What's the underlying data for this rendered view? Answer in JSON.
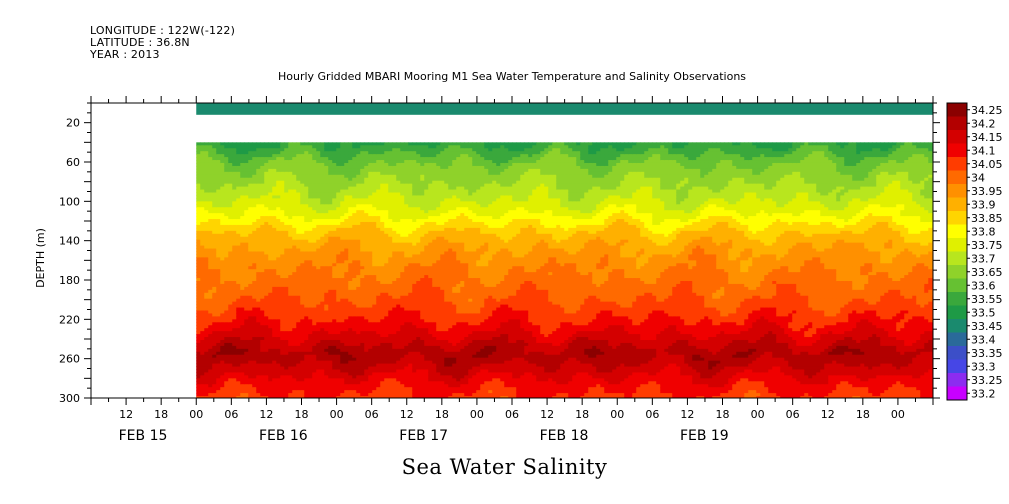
{
  "header": {
    "longitude": "LONGITUDE : 122W(-122)",
    "latitude": "LATITUDE : 36.8N",
    "year": "YEAR : 2013"
  },
  "footer_title": "Sea Water Salinity",
  "chart_data": {
    "type": "heatmap",
    "title": "Hourly Gridded MBARI Mooring M1 Sea Water Temperature and Salinity Observations",
    "ylabel": "DEPTH (m)",
    "xlabel": "",
    "ylim": [
      300,
      0
    ],
    "y_ticks": [
      "20",
      "60",
      "100",
      "140",
      "180",
      "220",
      "260",
      "300"
    ],
    "y_tick_values": [
      20,
      60,
      100,
      140,
      180,
      220,
      260,
      300
    ],
    "x_range": [
      "FEB 15 06:00",
      "FEB 20 00:00"
    ],
    "x_tick_labels": [
      "12",
      "18",
      "00",
      "06",
      "12",
      "18",
      "00",
      "06",
      "12",
      "18",
      "00",
      "06",
      "12",
      "18",
      "00",
      "06",
      "12",
      "18",
      "00",
      "06",
      "12",
      "18",
      "00"
    ],
    "x_tick_hours": [
      6,
      12,
      18,
      24,
      30,
      36,
      42,
      48,
      54,
      60,
      66,
      72,
      78,
      84,
      90,
      96,
      102,
      108,
      114,
      120,
      126,
      132,
      138
    ],
    "date_labels": [
      "FEB 15",
      "FEB 16",
      "FEB 17",
      "FEB 18",
      "FEB 19"
    ],
    "date_label_hours": [
      0,
      24,
      48,
      72,
      96
    ],
    "data_start": "FEB 15 18:00",
    "colorbar": {
      "levels": [
        "34.25",
        "34.2",
        "34.15",
        "34.1",
        "34.05",
        "34",
        "33.95",
        "33.9",
        "33.85",
        "33.8",
        "33.75",
        "33.7",
        "33.65",
        "33.6",
        "33.55",
        "33.5",
        "33.45",
        "33.4",
        "33.35",
        "33.3",
        "33.25",
        "33.2"
      ],
      "colors": [
        "#8b0000",
        "#b30000",
        "#d40000",
        "#f00000",
        "#ff3c00",
        "#ff6a00",
        "#ff9000",
        "#ffb000",
        "#ffd500",
        "#ffff00",
        "#e0f000",
        "#b8e61e",
        "#8fd22a",
        "#66c132",
        "#3aa83c",
        "#1e9a46",
        "#1a8a6e",
        "#2a6a9a",
        "#3c4fc8",
        "#4646e6",
        "#8c2cf0",
        "#c800ff"
      ]
    },
    "profile": [
      {
        "depth": 10,
        "salinity": 33.46
      },
      {
        "depth": 40,
        "salinity": 33.55
      },
      {
        "depth": 60,
        "salinity": 33.65
      },
      {
        "depth": 80,
        "salinity": 33.7
      },
      {
        "depth": 100,
        "salinity": 33.75
      },
      {
        "depth": 115,
        "salinity": 33.82
      },
      {
        "depth": 130,
        "salinity": 33.9
      },
      {
        "depth": 145,
        "salinity": 33.95
      },
      {
        "depth": 170,
        "salinity": 34.0
      },
      {
        "depth": 200,
        "salinity": 34.05
      },
      {
        "depth": 225,
        "salinity": 34.12
      },
      {
        "depth": 240,
        "salinity": 34.18
      },
      {
        "depth": 255,
        "salinity": 34.24
      },
      {
        "depth": 270,
        "salinity": 34.18
      },
      {
        "depth": 285,
        "salinity": 34.12
      },
      {
        "depth": 300,
        "salinity": 34.08
      }
    ]
  }
}
